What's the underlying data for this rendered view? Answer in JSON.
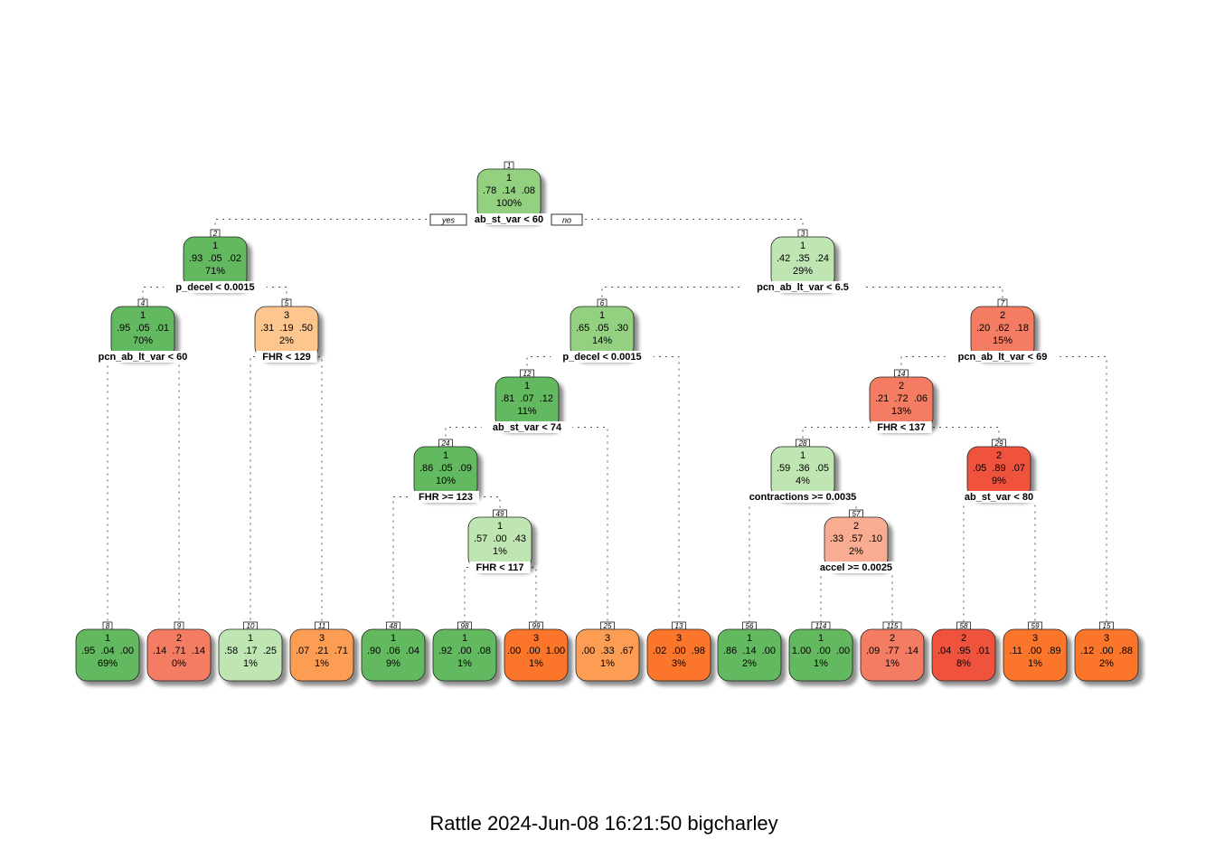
{
  "colors": {
    "light_green": "#bfe5b3",
    "mid_green": "#93d07f",
    "green": "#63b95f",
    "peach": "#fdc68f",
    "orange": "#fd9d52",
    "dark_orange": "#fb7629",
    "salmon_light": "#f8ad92",
    "salmon": "#f47c62",
    "red": "#f0533d"
  },
  "labels": {
    "yes": "yes",
    "no": "no"
  },
  "footer": "Rattle 2024-Jun-08 16:21:50 bigcharley",
  "nodes": [
    {
      "id": "1",
      "cls": "1",
      "probs": ".78  .14  .08",
      "pct": "100%",
      "color": "mid_green",
      "split": "ab_st_var < 60"
    },
    {
      "id": "2",
      "cls": "1",
      "probs": ".93  .05  .02",
      "pct": "71%",
      "color": "green",
      "split": "p_decel < 0.0015"
    },
    {
      "id": "3",
      "cls": "1",
      "probs": ".42  .35  .24",
      "pct": "29%",
      "color": "light_green",
      "split": "pcn_ab_lt_var < 6.5"
    },
    {
      "id": "4",
      "cls": "1",
      "probs": ".95  .05  .01",
      "pct": "70%",
      "color": "green",
      "split": "pcn_ab_lt_var < 60"
    },
    {
      "id": "5",
      "cls": "3",
      "probs": ".31  .19  .50",
      "pct": "2%",
      "color": "peach",
      "split": "FHR < 129"
    },
    {
      "id": "6",
      "cls": "1",
      "probs": ".65  .05  .30",
      "pct": "14%",
      "color": "mid_green",
      "split": "p_decel < 0.0015"
    },
    {
      "id": "7",
      "cls": "2",
      "probs": ".20  .62  .18",
      "pct": "15%",
      "color": "salmon",
      "split": "pcn_ab_lt_var < 69"
    },
    {
      "id": "12",
      "cls": "1",
      "probs": ".81  .07  .12",
      "pct": "11%",
      "color": "green",
      "split": "ab_st_var < 74"
    },
    {
      "id": "14",
      "cls": "2",
      "probs": ".21  .72  .06",
      "pct": "13%",
      "color": "salmon",
      "split": "FHR < 137"
    },
    {
      "id": "24",
      "cls": "1",
      "probs": ".86  .05  .09",
      "pct": "10%",
      "color": "green",
      "split": "FHR >= 123"
    },
    {
      "id": "28",
      "cls": "1",
      "probs": ".59  .36  .05",
      "pct": "4%",
      "color": "light_green",
      "split": "contractions >= 0.0035"
    },
    {
      "id": "29",
      "cls": "2",
      "probs": ".05  .89  .07",
      "pct": "9%",
      "color": "red",
      "split": "ab_st_var < 80"
    },
    {
      "id": "49",
      "cls": "1",
      "probs": ".57  .00  .43",
      "pct": "1%",
      "color": "light_green",
      "split": "FHR < 117"
    },
    {
      "id": "57",
      "cls": "2",
      "probs": ".33  .57  .10",
      "pct": "2%",
      "color": "salmon_light",
      "split": "accel >= 0.0025"
    },
    {
      "id": "8",
      "cls": "1",
      "probs": ".95  .04  .00",
      "pct": "69%",
      "color": "green",
      "split": ""
    },
    {
      "id": "9",
      "cls": "2",
      "probs": ".14  .71  .14",
      "pct": "0%",
      "color": "salmon",
      "split": ""
    },
    {
      "id": "10",
      "cls": "1",
      "probs": ".58  .17  .25",
      "pct": "1%",
      "color": "light_green",
      "split": ""
    },
    {
      "id": "11",
      "cls": "3",
      "probs": ".07  .21  .71",
      "pct": "1%",
      "color": "orange",
      "split": ""
    },
    {
      "id": "48",
      "cls": "1",
      "probs": ".90  .06  .04",
      "pct": "9%",
      "color": "green",
      "split": ""
    },
    {
      "id": "98",
      "cls": "1",
      "probs": ".92  .00  .08",
      "pct": "1%",
      "color": "green",
      "split": ""
    },
    {
      "id": "99",
      "cls": "3",
      "probs": ".00  .00  1.00",
      "pct": "1%",
      "color": "dark_orange",
      "split": ""
    },
    {
      "id": "25",
      "cls": "3",
      "probs": ".00  .33  .67",
      "pct": "1%",
      "color": "orange",
      "split": ""
    },
    {
      "id": "13",
      "cls": "3",
      "probs": ".02  .00  .98",
      "pct": "3%",
      "color": "dark_orange",
      "split": ""
    },
    {
      "id": "56",
      "cls": "1",
      "probs": ".86  .14  .00",
      "pct": "2%",
      "color": "green",
      "split": ""
    },
    {
      "id": "114",
      "cls": "1",
      "probs": "1.00  .00  .00",
      "pct": "1%",
      "color": "green",
      "split": ""
    },
    {
      "id": "115",
      "cls": "2",
      "probs": ".09  .77  .14",
      "pct": "1%",
      "color": "salmon",
      "split": ""
    },
    {
      "id": "58",
      "cls": "2",
      "probs": ".04  .95  .01",
      "pct": "8%",
      "color": "red",
      "split": ""
    },
    {
      "id": "59",
      "cls": "3",
      "probs": ".11  .00  .89",
      "pct": "1%",
      "color": "dark_orange",
      "split": ""
    },
    {
      "id": "15",
      "cls": "3",
      "probs": ".12  .00  .88",
      "pct": "2%",
      "color": "dark_orange",
      "split": ""
    }
  ]
}
